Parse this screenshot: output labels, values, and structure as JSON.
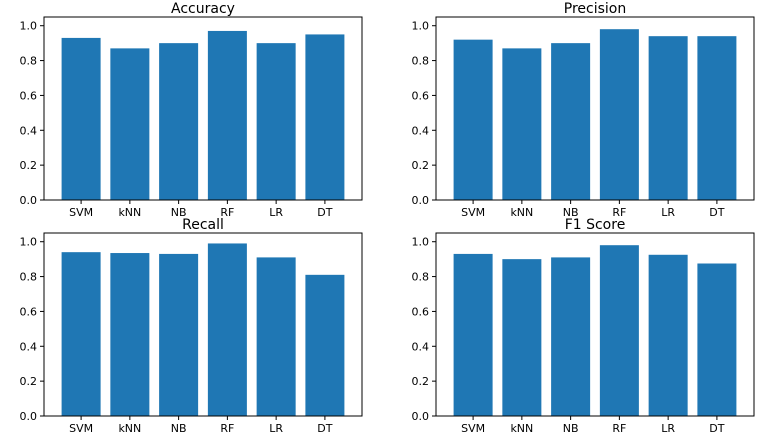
{
  "chart_data": [
    {
      "type": "bar",
      "title": "Accuracy",
      "categories": [
        "SVM",
        "kNN",
        "NB",
        "RF",
        "LR",
        "DT"
      ],
      "values": [
        0.93,
        0.87,
        0.9,
        0.97,
        0.9,
        0.95
      ],
      "ylim": [
        0,
        1.05
      ],
      "yticks": [
        "0.0",
        "0.2",
        "0.4",
        "0.6",
        "0.8",
        "1.0"
      ],
      "bar_color": "#1f77b4",
      "grid": false
    },
    {
      "type": "bar",
      "title": "Precision",
      "categories": [
        "SVM",
        "kNN",
        "NB",
        "RF",
        "LR",
        "DT"
      ],
      "values": [
        0.92,
        0.87,
        0.9,
        0.98,
        0.94,
        0.94
      ],
      "ylim": [
        0,
        1.05
      ],
      "yticks": [
        "0.0",
        "0.2",
        "0.4",
        "0.6",
        "0.8",
        "1.0"
      ],
      "bar_color": "#1f77b4",
      "grid": false
    },
    {
      "type": "bar",
      "title": "Recall",
      "categories": [
        "SVM",
        "kNN",
        "NB",
        "RF",
        "LR",
        "DT"
      ],
      "values": [
        0.94,
        0.935,
        0.93,
        0.99,
        0.91,
        0.81
      ],
      "ylim": [
        0,
        1.05
      ],
      "yticks": [
        "0.0",
        "0.2",
        "0.4",
        "0.6",
        "0.8",
        "1.0"
      ],
      "bar_color": "#1f77b4",
      "grid": false
    },
    {
      "type": "bar",
      "title": "F1 Score",
      "categories": [
        "SVM",
        "kNN",
        "NB",
        "RF",
        "LR",
        "DT"
      ],
      "values": [
        0.93,
        0.9,
        0.91,
        0.98,
        0.925,
        0.875
      ],
      "ylim": [
        0,
        1.05
      ],
      "yticks": [
        "0.0",
        "0.2",
        "0.4",
        "0.6",
        "0.8",
        "1.0"
      ],
      "bar_color": "#1f77b4",
      "grid": false
    }
  ]
}
